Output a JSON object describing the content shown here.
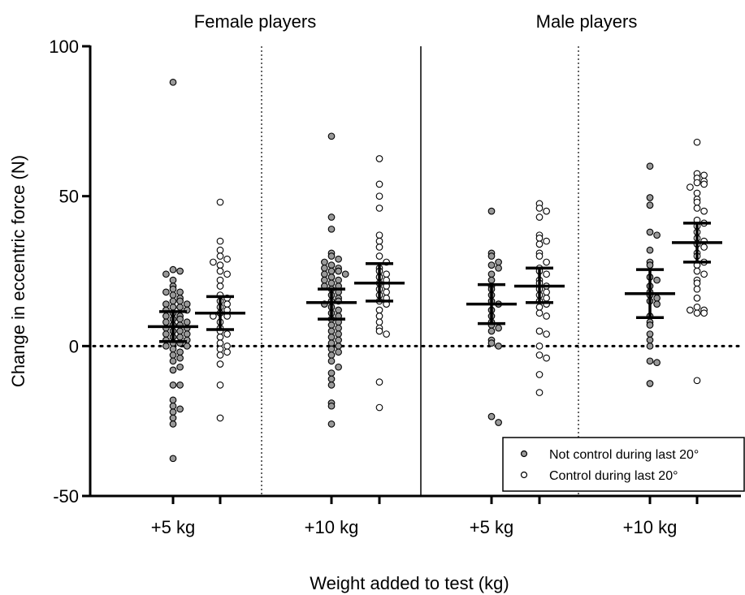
{
  "chart_data": {
    "type": "scatter",
    "title": "",
    "xlabel": "Weight added to test (kg)",
    "ylabel": "Change in eccentric force (N)",
    "ylim": [
      -50,
      100
    ],
    "yticks": [
      -50,
      0,
      50,
      100
    ],
    "ytick_labels": [
      "-50",
      "0",
      "50",
      "100"
    ],
    "panels": [
      "Female players",
      "Male players"
    ],
    "categories": [
      "+5 kg",
      "+10 kg",
      "+5 kg",
      "+10 kg"
    ],
    "reference_line_y": 0,
    "legend_position": "bottom-right",
    "colors": {
      "not_control": "#999999",
      "control": "#ffffff",
      "stroke": "#000000"
    },
    "series": [
      {
        "name": "Not control during last 20°",
        "marker": "filled-grey-circle"
      },
      {
        "name": "Control during last 20°",
        "marker": "open-circle"
      }
    ],
    "groups": [
      {
        "panel": "Female players",
        "category": "+5 kg",
        "series": "Not control during last 20°",
        "median": 6.5,
        "ci": [
          1.5,
          11.5
        ],
        "values": [
          88,
          25.5,
          25,
          24,
          22,
          20,
          19,
          18,
          18,
          17,
          16,
          15,
          15,
          14,
          14,
          13,
          13,
          12,
          12,
          11,
          10,
          10,
          9,
          9,
          8,
          8,
          7,
          7,
          6,
          6,
          5,
          5,
          4,
          4,
          3,
          3,
          2,
          2,
          1,
          1,
          0,
          0,
          -1,
          -2,
          -3,
          -4,
          -5,
          -7,
          -8,
          -13,
          -13,
          -18,
          -20,
          -21,
          -22,
          -24,
          -26,
          -37.5
        ]
      },
      {
        "panel": "Female players",
        "category": "+5 kg",
        "series": "Control during last 20°",
        "median": 11,
        "ci": [
          5.5,
          16.5
        ],
        "values": [
          48,
          35,
          32,
          30,
          29,
          28,
          27,
          25,
          24,
          22,
          20,
          17,
          16,
          15,
          14,
          13,
          12,
          11,
          10,
          10,
          8,
          6,
          5,
          4,
          3,
          1,
          0,
          -1,
          -2,
          -3,
          -6,
          -13,
          -24
        ]
      },
      {
        "panel": "Female players",
        "category": "+10 kg",
        "series": "Not control during last 20°",
        "median": 14.5,
        "ci": [
          9,
          19
        ],
        "values": [
          70,
          43,
          39,
          31,
          30,
          29,
          28,
          27,
          26,
          26,
          25,
          25,
          24,
          24,
          23,
          22,
          22,
          21,
          20,
          20,
          19,
          18,
          17,
          16,
          15,
          15,
          14,
          13,
          12,
          11,
          10,
          9,
          8,
          7,
          6,
          5,
          4,
          3,
          2,
          1,
          0,
          -1,
          -2,
          -3,
          -5,
          -7,
          -9,
          -11,
          -13,
          -19,
          -20,
          -26
        ]
      },
      {
        "panel": "Female players",
        "category": "+10 kg",
        "series": "Control during last 20°",
        "median": 21,
        "ci": [
          15,
          27.5
        ],
        "values": [
          62.5,
          54,
          50,
          46,
          37,
          35,
          33,
          30,
          28,
          26,
          25,
          24,
          23,
          22,
          21,
          20,
          19,
          18,
          17,
          16,
          15,
          14,
          12,
          10,
          8,
          6,
          5,
          4,
          -12,
          -20.5
        ]
      },
      {
        "panel": "Male players",
        "category": "+5 kg",
        "series": "Not control during last 20°",
        "median": 14,
        "ci": [
          7.5,
          20.5
        ],
        "values": [
          45,
          31,
          30,
          28,
          27,
          26,
          24,
          22,
          20,
          19,
          17,
          15,
          14,
          12,
          10,
          8,
          7,
          6,
          5,
          2,
          1,
          0,
          -23.5,
          -25.5
        ]
      },
      {
        "panel": "Male players",
        "category": "+5 kg",
        "series": "Control during last 20°",
        "median": 20,
        "ci": [
          14.5,
          26
        ],
        "values": [
          47.5,
          46,
          45,
          43,
          37,
          36,
          35,
          34,
          31,
          30,
          28,
          26,
          25,
          24,
          22,
          21,
          20,
          19,
          18,
          17,
          16,
          15,
          14,
          13,
          11,
          10,
          5,
          4,
          0,
          -3,
          -4,
          -9.5,
          -15.5
        ]
      },
      {
        "panel": "Male players",
        "category": "+10 kg",
        "series": "Not control during last 20°",
        "median": 17.5,
        "ci": [
          9.5,
          25.5
        ],
        "values": [
          60,
          49.5,
          47,
          38,
          37,
          32,
          28,
          27,
          23,
          22,
          20,
          18,
          17,
          16,
          15,
          14,
          10,
          8,
          7,
          4,
          2,
          0,
          -5,
          -5.5,
          -12.5
        ]
      },
      {
        "panel": "Male players",
        "category": "+10 kg",
        "series": "Control during last 20°",
        "median": 34.5,
        "ci": [
          28,
          41
        ],
        "values": [
          68,
          57.5,
          57,
          56,
          55,
          54.5,
          54,
          53,
          51,
          49,
          48,
          46,
          45,
          42,
          41,
          40,
          38,
          36,
          35,
          34,
          33,
          31,
          30,
          28,
          27,
          25,
          24,
          22,
          21,
          19,
          16,
          13,
          12,
          12,
          11,
          11,
          -11.5
        ]
      }
    ]
  }
}
